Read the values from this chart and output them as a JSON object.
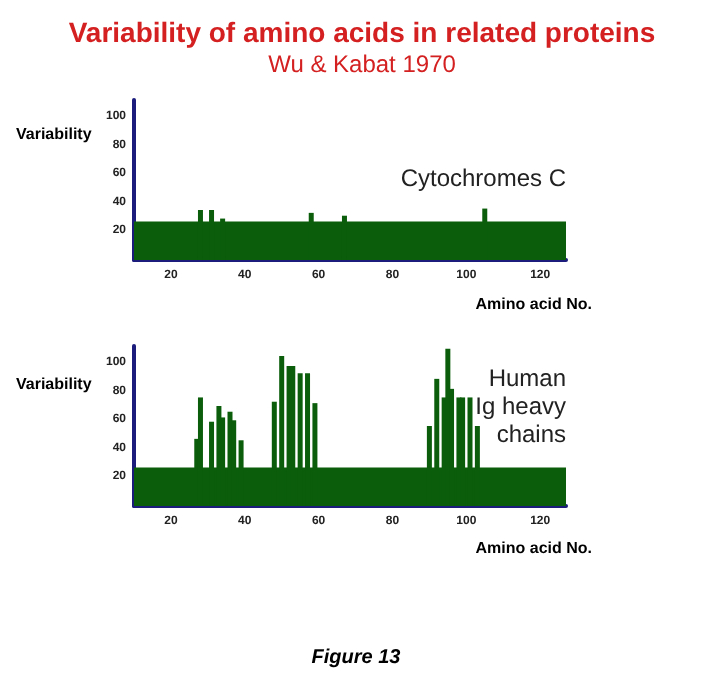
{
  "chart_data": [
    {
      "type": "bar",
      "title": "Variability of amino acids in related proteins",
      "subtitle": "Wu & Kabat 1970",
      "xlabel": "Amino acid No.",
      "ylabel": "Variability",
      "annotations": [
        "Cytochromes C"
      ],
      "xlim": [
        10,
        127
      ],
      "ylim": [
        0,
        112
      ],
      "xticks": [
        20,
        40,
        60,
        80,
        100,
        120
      ],
      "yticks": [
        20,
        40,
        60,
        80,
        100
      ],
      "grid": false,
      "series": [
        {
          "type": "area",
          "color": "#0b5d0b",
          "x": [
            10,
            127
          ],
          "values": [
            27,
            27
          ]
        },
        {
          "color": "#0b5d0b",
          "x": [
            28,
            31,
            34,
            58,
            67,
            105
          ],
          "values": [
            35,
            35,
            29,
            33,
            31,
            36
          ]
        }
      ]
    },
    {
      "type": "bar",
      "xlabel": "Amino acid No.",
      "ylabel": "Variability",
      "annotations": [
        "Human\nIg heavy\nchains",
        "Figure 13"
      ],
      "xlim": [
        10,
        127
      ],
      "ylim": [
        0,
        112
      ],
      "xticks": [
        20,
        40,
        60,
        80,
        100,
        120
      ],
      "yticks": [
        20,
        40,
        60,
        80,
        100
      ],
      "grid": false,
      "series": [
        {
          "type": "area",
          "color": "#0b5d0b",
          "x": [
            10,
            127
          ],
          "values": [
            27,
            27
          ]
        },
        {
          "color": "#0b5d0b",
          "x": [
            27,
            28,
            31,
            33,
            34,
            36,
            37,
            39,
            48,
            50,
            52,
            53,
            55,
            57,
            59,
            90,
            92,
            94,
            95,
            96,
            98,
            99,
            101,
            103
          ],
          "values": [
            47,
            76,
            59,
            70,
            62,
            66,
            60,
            46,
            73,
            105,
            98,
            98,
            93,
            93,
            72,
            56,
            89,
            76,
            110,
            82,
            76,
            76,
            76,
            56
          ]
        }
      ]
    }
  ]
}
